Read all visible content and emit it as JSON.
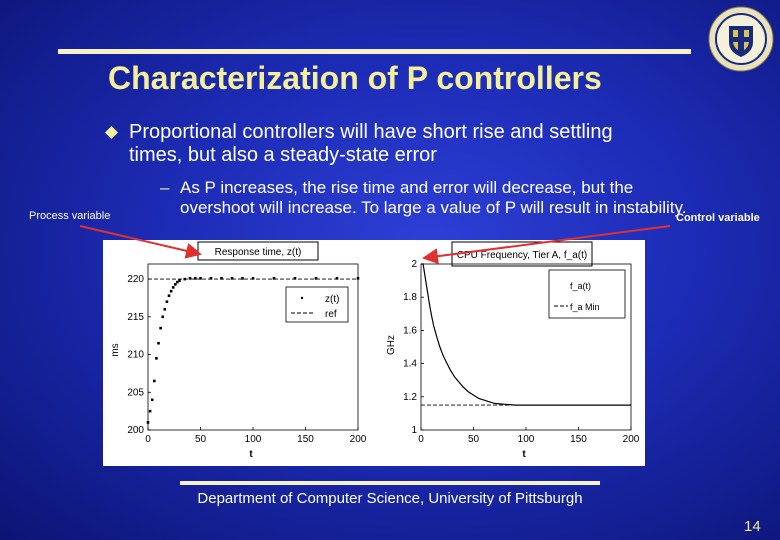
{
  "slide": {
    "title": "Characterization of P controllers",
    "bullet": "Proportional controllers will have short rise and settling times, but also a steady-state error",
    "sub_bullet_dash": "–",
    "sub_bullet": "As P increases, the rise time and error will decrease, but the overshoot will increase.  To large a value of P will result in instability.",
    "annotation_left": "Process variable",
    "annotation_right": "Control variable",
    "footer": "Department of Computer Science, University of Pittsburgh",
    "page_number": "14"
  },
  "colors": {
    "background": "#1c2bb4",
    "title": "#f3ef9a",
    "rule": "#f6f1c8",
    "arrow": "#e03030"
  },
  "icons": {
    "bullet": "diamond-bullet-icon",
    "seal": "university-seal-icon"
  },
  "chart_data": [
    {
      "type": "line",
      "title": "Response time, z(t)",
      "xlabel": "t",
      "ylabel": "ms",
      "xlim": [
        0,
        200
      ],
      "ylim": [
        200,
        222
      ],
      "xticks": [
        0,
        50,
        100,
        150,
        200
      ],
      "yticks": [
        200,
        205,
        210,
        215,
        220
      ],
      "legend_position": "inside-right",
      "grid": false,
      "series": [
        {
          "name": "z(t)",
          "style": "dots",
          "x": [
            0,
            2,
            4,
            6,
            8,
            10,
            12,
            14,
            16,
            18,
            20,
            22,
            24,
            26,
            28,
            30,
            35,
            40,
            45,
            50,
            60,
            70,
            80,
            90,
            100,
            120,
            140,
            160,
            180,
            200
          ],
          "y": [
            201,
            202.5,
            204,
            206.5,
            209.5,
            211.5,
            213.5,
            215,
            216,
            217,
            217.8,
            218.4,
            218.9,
            219.3,
            219.6,
            219.8,
            220,
            220.1,
            220.1,
            220.1,
            220.1,
            220.1,
            220.1,
            220.1,
            220.1,
            220.1,
            220.1,
            220.1,
            220.1,
            220.1
          ]
        },
        {
          "name": "ref",
          "style": "dashed",
          "x": [
            0,
            200
          ],
          "y": [
            220,
            220
          ]
        }
      ]
    },
    {
      "type": "line",
      "title": "CPU Frequency, Tier A, f_a(t)",
      "xlabel": "t",
      "ylabel": "GHz",
      "xlim": [
        0,
        200
      ],
      "ylim": [
        1,
        2
      ],
      "xticks": [
        0,
        50,
        100,
        150,
        200
      ],
      "yticks": [
        1,
        1.2,
        1.4,
        1.6,
        1.8,
        2
      ],
      "legend_position": "top-right",
      "grid": false,
      "series": [
        {
          "name": "f_a(t)",
          "style": "solid",
          "x": [
            0,
            2,
            4,
            6,
            8,
            10,
            12,
            15,
            18,
            21,
            24,
            28,
            32,
            36,
            40,
            45,
            50,
            55,
            60,
            65,
            70,
            80,
            90,
            100,
            120,
            140,
            160,
            180,
            200
          ],
          "y": [
            2,
            2,
            1.92,
            1.84,
            1.76,
            1.69,
            1.63,
            1.56,
            1.5,
            1.45,
            1.41,
            1.36,
            1.32,
            1.29,
            1.26,
            1.23,
            1.21,
            1.19,
            1.18,
            1.17,
            1.16,
            1.155,
            1.15,
            1.15,
            1.15,
            1.15,
            1.15,
            1.15,
            1.15
          ]
        },
        {
          "name": "f_a Min",
          "style": "dashed",
          "x": [
            0,
            200
          ],
          "y": [
            1.15,
            1.15
          ]
        }
      ]
    }
  ]
}
